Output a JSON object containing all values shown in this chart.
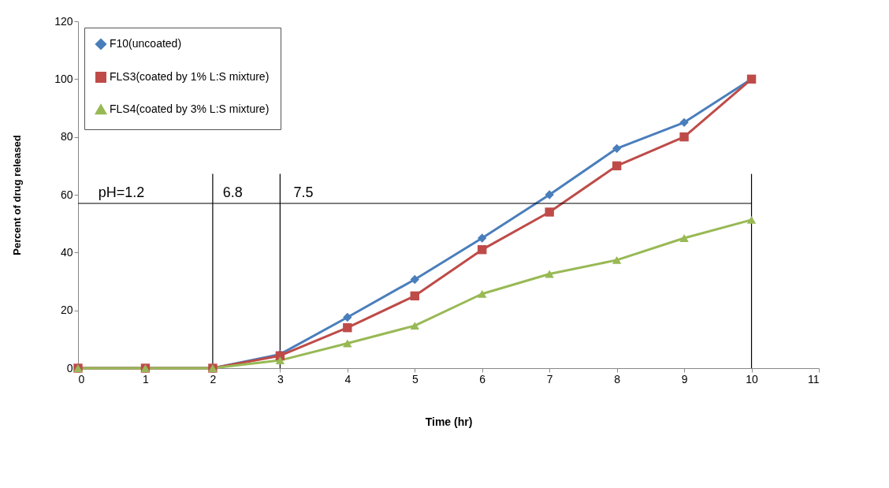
{
  "chart_data": {
    "type": "line",
    "xlabel": "Time (hr)",
    "ylabel": "Percent of drug released",
    "x": [
      0,
      1,
      2,
      3,
      4,
      5,
      6,
      7,
      8,
      9,
      10
    ],
    "series": [
      {
        "name": "F10(uncoated)",
        "color": "#4a7ebb",
        "marker": "diamond",
        "values": [
          0,
          0,
          0,
          4.8,
          17.6,
          30.7,
          45,
          60,
          76,
          85,
          100
        ]
      },
      {
        "name": "FLS3(coated by 1% L:S mixture)",
        "color": "#be4b48",
        "marker": "square",
        "values": [
          0,
          0,
          0,
          4.3,
          14,
          25,
          41,
          54,
          70,
          80,
          100
        ]
      },
      {
        "name": "FLS4(coated by 3% L:S mixture)",
        "color": "#98b954",
        "marker": "triangle",
        "values": [
          0,
          0,
          0,
          2.7,
          8.6,
          14.7,
          25.7,
          32.6,
          37.4,
          45,
          51.3
        ]
      }
    ],
    "xlim": [
      0,
      11
    ],
    "xticks": [
      0,
      1,
      2,
      3,
      4,
      5,
      6,
      7,
      8,
      9,
      10,
      11
    ],
    "ylim": [
      0,
      120
    ],
    "yticks": [
      0,
      20,
      40,
      60,
      80,
      100,
      120
    ],
    "grid": false,
    "legend": "top left",
    "ref_lines": [
      {
        "axis": "y",
        "value": 57,
        "color": "#000000"
      },
      {
        "axis": "x",
        "value": 2,
        "color": "#000000"
      },
      {
        "axis": "x",
        "value": 3,
        "color": "#000000"
      },
      {
        "axis": "x",
        "value": 10,
        "color": "#000000"
      }
    ],
    "annotations": [
      {
        "text": "pH=1.2",
        "x": 0.3,
        "y": 58
      },
      {
        "text": "6.8",
        "x": 2.15,
        "y": 58
      },
      {
        "text": "7.5",
        "x": 3.2,
        "y": 58
      }
    ]
  }
}
